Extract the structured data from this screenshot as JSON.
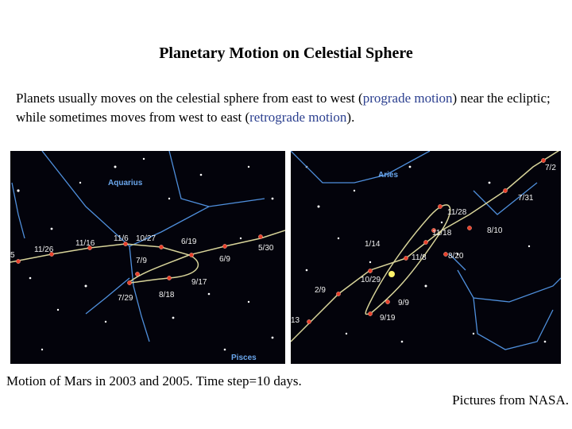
{
  "title": "Planetary Motion on Celestial Sphere",
  "intro": {
    "part1": "Planets usually moves on the celestial sphere from east to west (",
    "prograde": "prograde motion",
    "part2": ") near the ecliptic; while sometimes moves from west to east (",
    "retrograde": "retrograde motion",
    "part3": ")."
  },
  "colors": {
    "highlight": "#2b3f8f",
    "constellation": "#4f8fdc",
    "path": "#d8d49a",
    "planet_dot": "#e8412b"
  },
  "left_chart": {
    "constellations": [
      "Aquarius",
      "Pisces"
    ],
    "date_labels": [
      "5",
      "11/26",
      "11/16",
      "11/6",
      "10/27",
      "6/19",
      "5/30",
      "7/9",
      "6/9",
      "9/17",
      "7/29",
      "8/18"
    ]
  },
  "right_chart": {
    "constellations": [
      "Aries"
    ],
    "date_labels": [
      "7/2",
      "7/31",
      "11/28",
      "8/10",
      "11/18",
      "1/14",
      "11/8",
      "8/20",
      "10/29",
      "2/9",
      "9/9",
      "9/19",
      "13"
    ]
  },
  "caption": "Motion of Mars in 2003 and 2005. Time step=10 days.",
  "credit": "Pictures from NASA."
}
